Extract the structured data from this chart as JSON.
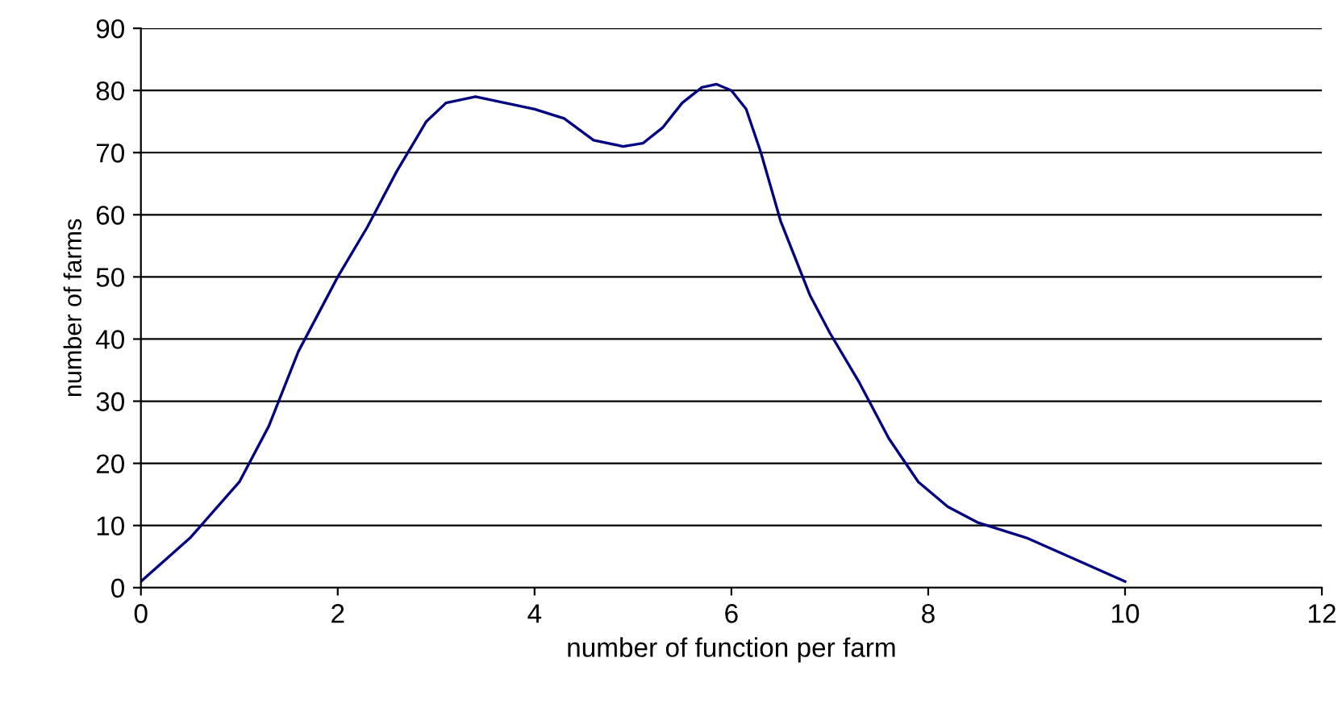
{
  "chart_data": {
    "type": "line",
    "xlabel": "number of function per farm",
    "ylabel": "number of farms",
    "x": [
      0,
      0.5,
      1,
      1.3,
      1.6,
      2,
      2.3,
      2.6,
      2.9,
      3.1,
      3.4,
      3.7,
      4,
      4.3,
      4.6,
      4.9,
      5.1,
      5.3,
      5.5,
      5.7,
      5.85,
      6,
      6.15,
      6.3,
      6.5,
      6.8,
      7,
      7.3,
      7.6,
      7.9,
      8.2,
      8.5,
      9,
      9.5,
      10
    ],
    "series": [
      {
        "color": "#000080",
        "values": [
          1,
          8,
          17,
          26,
          38,
          50,
          58,
          67,
          75,
          78,
          79,
          78,
          77,
          75.5,
          72,
          71,
          71.5,
          74,
          78,
          80.5,
          81,
          80,
          77,
          70,
          59,
          47,
          41,
          33,
          24,
          17,
          13,
          10.5,
          8,
          4.5,
          1
        ]
      }
    ],
    "xlim": [
      0,
      12
    ],
    "xticks": [
      0,
      2,
      4,
      6,
      8,
      10,
      12
    ],
    "ylim": [
      0,
      90
    ],
    "yticks": [
      0,
      10,
      20,
      30,
      40,
      50,
      60,
      70,
      80,
      90
    ],
    "grid": "y",
    "marker": "none",
    "line_style": "solid"
  }
}
